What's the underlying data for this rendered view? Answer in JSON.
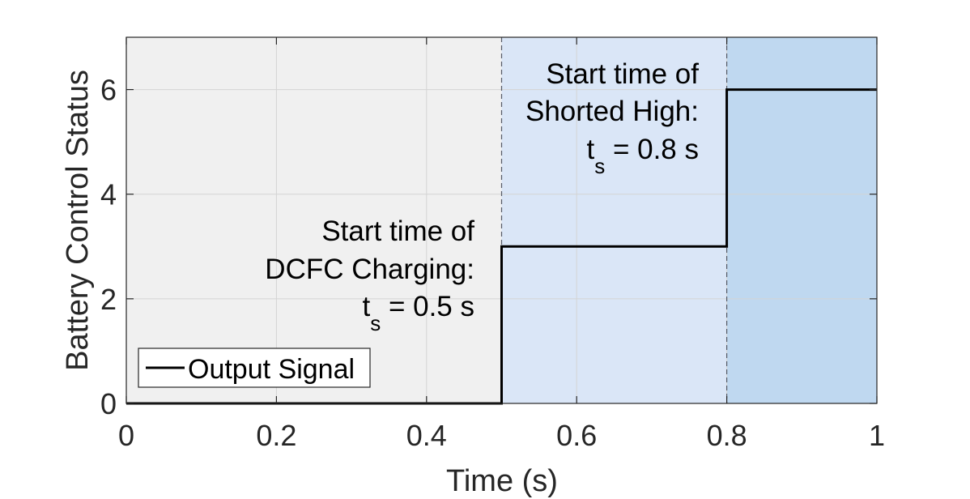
{
  "chart_data": {
    "type": "line",
    "title": "",
    "xlabel": "Time (s)",
    "ylabel": "Battery Control Status",
    "xlim": [
      0,
      1
    ],
    "ylim": [
      0,
      7
    ],
    "x_ticks": [
      0,
      0.2,
      0.4,
      0.6,
      0.8,
      1
    ],
    "x_tick_labels": [
      "0",
      "0.2",
      "0.4",
      "0.6",
      "0.8",
      "1"
    ],
    "y_ticks": [
      0,
      2,
      4,
      6
    ],
    "y_tick_labels": [
      "0",
      "2",
      "4",
      "6"
    ],
    "grid": true,
    "legend": {
      "placement": "bottom-left",
      "entries": [
        "Output Signal"
      ]
    },
    "series": [
      {
        "name": "Output Signal",
        "color": "#000000",
        "x": [
          0,
          0.5,
          0.5,
          0.8,
          0.8,
          1
        ],
        "y": [
          0,
          0,
          3,
          3,
          6,
          6
        ]
      }
    ],
    "regions": [
      {
        "x_start": 0,
        "x_end": 0.5,
        "color": "#f0f0f0"
      },
      {
        "x_start": 0.5,
        "x_end": 0.8,
        "color": "#dae6f7"
      },
      {
        "x_start": 0.8,
        "x_end": 1,
        "color": "#bfd8f0"
      }
    ],
    "vlines": [
      0.5,
      0.8
    ],
    "annotations": [
      {
        "line1": "Start time of",
        "line2": "DCFC Charging:",
        "t": "t",
        "sub": "s",
        "rest": " = 0.5 s"
      },
      {
        "line1": "Start time of",
        "line2": "Shorted High:",
        "t": "t",
        "sub": "s",
        "rest": " = 0.8 s"
      }
    ]
  }
}
